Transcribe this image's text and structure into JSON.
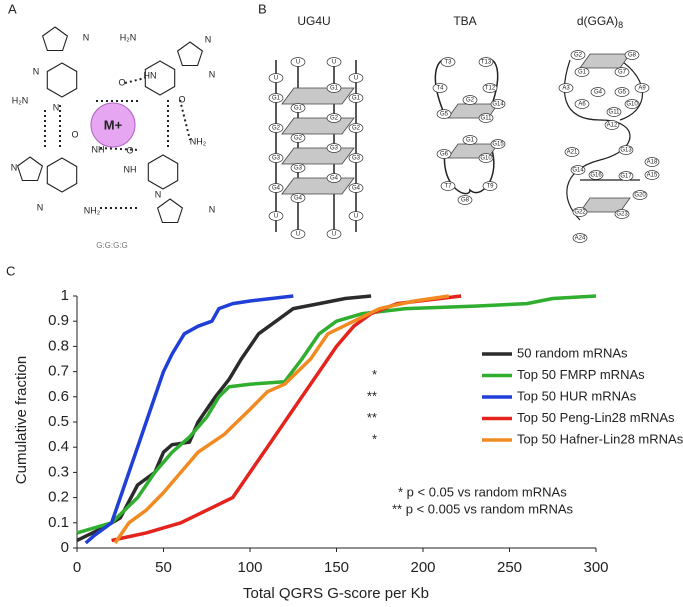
{
  "panel_labels": [
    "A",
    "B",
    "C"
  ],
  "panel_a": {
    "cation": "M+",
    "caption": "G:G:G:G",
    "atoms": [
      "N",
      "N",
      "N",
      "H₂N",
      "O",
      "H₂N",
      "HN",
      "N",
      "N",
      "O",
      "N",
      "N",
      "O",
      "NH",
      "NH₂",
      "O",
      "NH",
      "N",
      "NH₂",
      "N"
    ]
  },
  "panel_b": [
    {
      "title": "UG4U",
      "nodes": [
        "U",
        "U",
        "U",
        "U",
        "G1",
        "G1",
        "G1",
        "G1",
        "G2",
        "G2",
        "G2",
        "G2",
        "G3",
        "G3",
        "G3",
        "G3",
        "G4",
        "G4",
        "G4",
        "G4",
        "U",
        "U",
        "U",
        "U"
      ]
    },
    {
      "title": "TBA",
      "nodes": [
        "T3",
        "T4",
        "T13",
        "T12",
        "G5",
        "G2",
        "G11",
        "G14",
        "G6",
        "G1",
        "G10",
        "G15",
        "T7",
        "G8",
        "T9"
      ]
    },
    {
      "title": "d(GGA)",
      "title_subscript": "8",
      "nodes": [
        "G2",
        "G8",
        "G1",
        "G7",
        "A3",
        "G4",
        "A6",
        "G5",
        "A9",
        "G10",
        "G11",
        "A12",
        "A21",
        "G13",
        "A18",
        "G14",
        "A15",
        "G16",
        "G17",
        "G20",
        "G22",
        "G23",
        "A24"
      ]
    }
  ],
  "chart_data": {
    "type": "line",
    "x_label": "Total QGRS G-score per Kb",
    "y_label": "Cumulative fraction",
    "xlim": [
      0,
      300
    ],
    "xticks": [
      0,
      50,
      100,
      150,
      200,
      250,
      300
    ],
    "ylim": [
      0,
      1
    ],
    "yticks": [
      0,
      0.1,
      0.2,
      0.3,
      0.4,
      0.5,
      0.6,
      0.7,
      0.8,
      0.9,
      1
    ],
    "series": [
      {
        "name": "50 random mRNAs",
        "color": "#2b2b2b",
        "x": [
          0,
          15,
          25,
          35,
          45,
          50,
          55,
          65,
          70,
          80,
          88,
          95,
          100,
          105,
          115,
          125,
          140,
          155,
          170
        ],
        "values": [
          0.03,
          0.08,
          0.12,
          0.25,
          0.3,
          0.38,
          0.41,
          0.42,
          0.5,
          0.6,
          0.67,
          0.75,
          0.8,
          0.85,
          0.9,
          0.95,
          0.97,
          0.99,
          1
        ]
      },
      {
        "name": "Top 50 FMRP mRNAs",
        "color": "#2fae2f",
        "significance": "*",
        "x": [
          0,
          20,
          35,
          45,
          55,
          65,
          75,
          82,
          88,
          100,
          120,
          130,
          140,
          150,
          165,
          190,
          230,
          260,
          275,
          300
        ],
        "values": [
          0.06,
          0.1,
          0.2,
          0.3,
          0.38,
          0.44,
          0.52,
          0.6,
          0.64,
          0.65,
          0.66,
          0.75,
          0.85,
          0.9,
          0.93,
          0.95,
          0.96,
          0.97,
          0.99,
          1
        ]
      },
      {
        "name": "Top 50 HUR mRNAs",
        "color": "#1f3fd6",
        "significance": "**",
        "x": [
          5,
          10,
          20,
          25,
          30,
          35,
          40,
          45,
          50,
          55,
          62,
          70,
          78,
          82,
          90,
          100,
          125
        ],
        "values": [
          0.02,
          0.05,
          0.1,
          0.2,
          0.3,
          0.4,
          0.5,
          0.6,
          0.7,
          0.77,
          0.85,
          0.88,
          0.9,
          0.95,
          0.97,
          0.98,
          1
        ]
      },
      {
        "name": "Top 50 Peng-Lin28 mRNAs",
        "color": "#e3231c",
        "significance": "**",
        "x": [
          20,
          40,
          60,
          75,
          90,
          100,
          110,
          120,
          130,
          140,
          150,
          160,
          170,
          185,
          210,
          222
        ],
        "values": [
          0.03,
          0.06,
          0.1,
          0.15,
          0.2,
          0.3,
          0.4,
          0.5,
          0.6,
          0.7,
          0.8,
          0.88,
          0.93,
          0.97,
          0.99,
          1
        ]
      },
      {
        "name": "Top 50 Hafner-Lin28 mRNAs",
        "color": "#f28a22",
        "significance": "*",
        "x": [
          22,
          30,
          40,
          50,
          60,
          70,
          85,
          100,
          110,
          120,
          135,
          145,
          160,
          175,
          195,
          215
        ],
        "values": [
          0.02,
          0.1,
          0.15,
          0.22,
          0.3,
          0.38,
          0.45,
          0.55,
          0.62,
          0.65,
          0.75,
          0.85,
          0.9,
          0.95,
          0.98,
          1
        ]
      }
    ],
    "annotations": [
      "* p < 0.05 vs random mRNAs",
      "** p < 0.005 vs random mRNAs"
    ]
  }
}
